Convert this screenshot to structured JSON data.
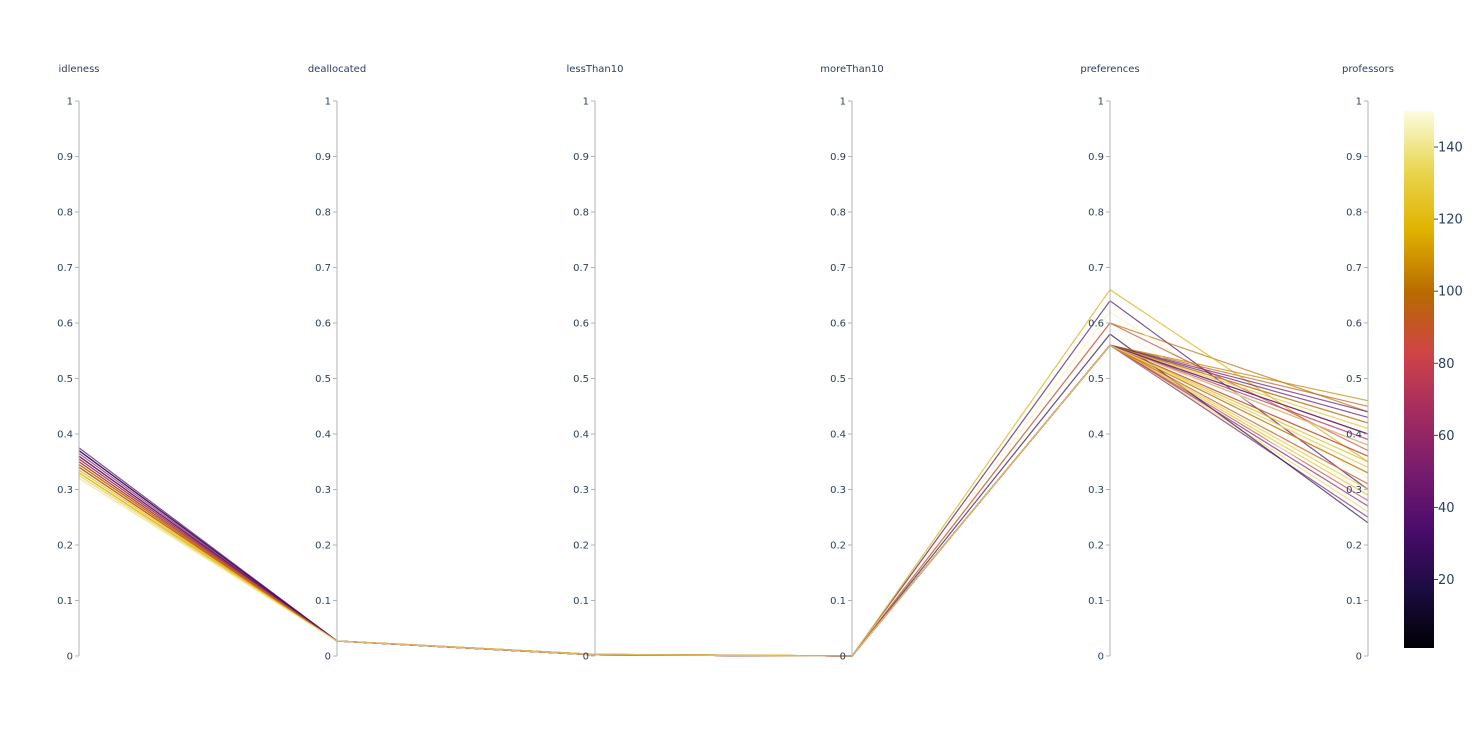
{
  "chart_data": {
    "type": "parallel_coordinates",
    "dimensions": [
      {
        "key": "idleness",
        "label": "idleness",
        "range": [
          0,
          1
        ]
      },
      {
        "key": "deallocated",
        "label": "deallocated",
        "range": [
          0,
          1
        ]
      },
      {
        "key": "lessThan10",
        "label": "lessThan10",
        "range": [
          0,
          1
        ]
      },
      {
        "key": "moreThan10",
        "label": "moreThan10",
        "range": [
          0,
          1
        ]
      },
      {
        "key": "preferences",
        "label": "preferences",
        "range": [
          0,
          1
        ]
      },
      {
        "key": "professors",
        "label": "professors",
        "range": [
          0,
          1
        ]
      }
    ],
    "ticks": [
      "0",
      "0.1",
      "0.2",
      "0.3",
      "0.4",
      "0.5",
      "0.6",
      "0.7",
      "0.8",
      "0.9",
      "1"
    ],
    "tick_values": [
      0,
      0.1,
      0.2,
      0.3,
      0.4,
      0.5,
      0.6,
      0.7,
      0.8,
      0.9,
      1
    ],
    "colorscale": "Inferno",
    "color_range": [
      1,
      150
    ],
    "colorbar_ticks": [
      "20",
      "40",
      "60",
      "80",
      "100",
      "120",
      "140"
    ],
    "colorbar_tick_values": [
      20,
      40,
      60,
      80,
      100,
      120,
      140
    ],
    "lines": [
      {
        "color_value": 30,
        "values": [
          0.375,
          0.027,
          0.002,
          0.0,
          0.64,
          0.3
        ]
      },
      {
        "color_value": 60,
        "values": [
          0.37,
          0.027,
          0.002,
          0.0,
          0.56,
          0.42
        ]
      },
      {
        "color_value": 50,
        "values": [
          0.365,
          0.027,
          0.002,
          0.0,
          0.56,
          0.25
        ]
      },
      {
        "color_value": 100,
        "values": [
          0.36,
          0.027,
          0.003,
          0.0,
          0.6,
          0.44
        ]
      },
      {
        "color_value": 90,
        "values": [
          0.355,
          0.027,
          0.003,
          0.0,
          0.56,
          0.4
        ]
      },
      {
        "color_value": 120,
        "values": [
          0.35,
          0.027,
          0.003,
          0.0,
          0.56,
          0.36
        ]
      },
      {
        "color_value": 110,
        "values": [
          0.345,
          0.027,
          0.003,
          0.0,
          0.56,
          0.34
        ]
      },
      {
        "color_value": 70,
        "values": [
          0.34,
          0.027,
          0.002,
          0.0,
          0.56,
          0.38
        ]
      },
      {
        "color_value": 130,
        "values": [
          0.335,
          0.027,
          0.003,
          0.0,
          0.56,
          0.33
        ]
      },
      {
        "color_value": 95,
        "values": [
          0.33,
          0.027,
          0.002,
          0.0,
          0.56,
          0.45
        ]
      },
      {
        "color_value": 80,
        "values": [
          0.325,
          0.027,
          0.002,
          0.0,
          0.56,
          0.28
        ]
      },
      {
        "color_value": 140,
        "values": [
          0.32,
          0.027,
          0.002,
          0.0,
          0.56,
          0.31
        ]
      },
      {
        "color_value": 115,
        "values": [
          0.33,
          0.027,
          0.002,
          0.0,
          0.66,
          0.35
        ]
      },
      {
        "color_value": 145,
        "values": [
          0.32,
          0.027,
          0.002,
          0.0,
          0.62,
          0.32
        ]
      },
      {
        "color_value": 148,
        "values": [
          0.325,
          0.027,
          0.002,
          0.0,
          0.6,
          0.29
        ]
      },
      {
        "color_value": 150,
        "values": [
          0.33,
          0.027,
          0.002,
          0.0,
          0.58,
          0.27
        ]
      },
      {
        "color_value": 135,
        "values": [
          0.34,
          0.027,
          0.002,
          0.0,
          0.56,
          0.26
        ]
      },
      {
        "color_value": 40,
        "values": [
          0.36,
          0.027,
          0.002,
          0.0,
          0.56,
          0.43
        ]
      },
      {
        "color_value": 20,
        "values": [
          0.37,
          0.027,
          0.002,
          0.0,
          0.58,
          0.24
        ]
      },
      {
        "color_value": 65,
        "values": [
          0.35,
          0.027,
          0.002,
          0.0,
          0.56,
          0.39
        ]
      },
      {
        "color_value": 85,
        "values": [
          0.34,
          0.027,
          0.002,
          0.0,
          0.6,
          0.37
        ]
      },
      {
        "color_value": 105,
        "values": [
          0.345,
          0.027,
          0.003,
          0.0,
          0.56,
          0.46
        ]
      },
      {
        "color_value": 125,
        "values": [
          0.335,
          0.027,
          0.003,
          0.0,
          0.56,
          0.41
        ]
      },
      {
        "color_value": 118,
        "values": [
          0.33,
          0.027,
          0.003,
          0.0,
          0.56,
          0.35
        ]
      },
      {
        "color_value": 55,
        "values": [
          0.355,
          0.027,
          0.002,
          0.0,
          0.56,
          0.27
        ]
      },
      {
        "color_value": 45,
        "values": [
          0.36,
          0.027,
          0.002,
          0.0,
          0.56,
          0.44
        ]
      },
      {
        "color_value": 75,
        "values": [
          0.35,
          0.027,
          0.002,
          0.0,
          0.56,
          0.36
        ]
      },
      {
        "color_value": 128,
        "values": [
          0.33,
          0.027,
          0.003,
          0.0,
          0.56,
          0.3
        ]
      },
      {
        "color_value": 112,
        "values": [
          0.34,
          0.027,
          0.003,
          0.0,
          0.56,
          0.42
        ]
      },
      {
        "color_value": 98,
        "values": [
          0.345,
          0.027,
          0.002,
          0.0,
          0.56,
          0.33
        ]
      },
      {
        "color_value": 138,
        "values": [
          0.325,
          0.027,
          0.003,
          0.0,
          0.56,
          0.38
        ]
      },
      {
        "color_value": 122,
        "values": [
          0.33,
          0.027,
          0.003,
          0.0,
          0.56,
          0.29
        ]
      },
      {
        "color_value": 35,
        "values": [
          0.37,
          0.027,
          0.002,
          0.0,
          0.56,
          0.4
        ]
      },
      {
        "color_value": 88,
        "values": [
          0.34,
          0.027,
          0.002,
          0.0,
          0.56,
          0.31
        ]
      },
      {
        "color_value": 142,
        "values": [
          0.32,
          0.027,
          0.002,
          0.0,
          0.56,
          0.34
        ]
      }
    ]
  }
}
